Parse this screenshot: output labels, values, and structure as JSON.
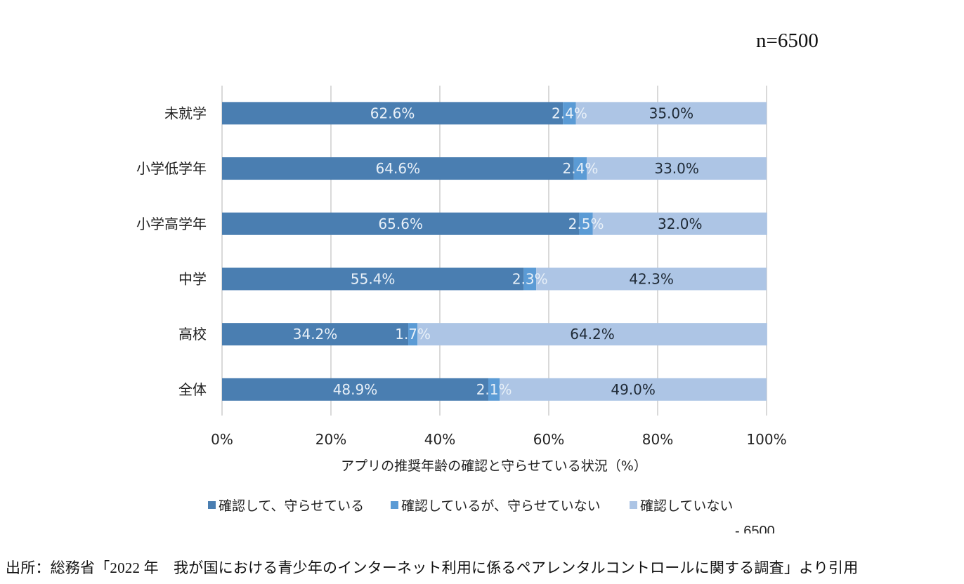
{
  "n_label": "n=6500",
  "source_note": "出所：総務省「2022 年　我が国における青少年のインターネット利用に係るペアレンタルコントロールに関する調査」より引用",
  "artifact_text": "-  6500",
  "chart_data": {
    "type": "bar",
    "orientation": "horizontal",
    "stacked": "percent",
    "title": "",
    "xlabel": "アプリの推奨年齢の確認と守らせている状況（%）",
    "ylabel": "",
    "xlim": [
      0,
      100
    ],
    "x_ticks": [
      "0%",
      "20%",
      "40%",
      "60%",
      "80%",
      "100%"
    ],
    "grid": true,
    "legend_position": "bottom",
    "categories": [
      "未就学",
      "小学低学年",
      "小学高学年",
      "中学",
      "高校",
      "全体"
    ],
    "series": [
      {
        "name": "確認して、守らせている",
        "color": "#4a7eb1",
        "label_color": "#e8f0f8",
        "values": [
          62.6,
          64.6,
          65.6,
          55.4,
          34.2,
          48.9
        ]
      },
      {
        "name": "確認しているが、守らせていない",
        "color": "#5b9bd5",
        "label_color": "#e8f0f8",
        "values": [
          2.4,
          2.4,
          2.5,
          2.3,
          1.7,
          2.1
        ]
      },
      {
        "name": "確認していない",
        "color": "#adc5e5",
        "label_color": "#1f2a36",
        "values": [
          35.0,
          33.0,
          32.0,
          42.3,
          64.2,
          49.0
        ]
      }
    ],
    "data_labels": [
      [
        "62.6%",
        "64.6%",
        "65.6%",
        "55.4%",
        "34.2%",
        "48.9%"
      ],
      [
        "2.4%",
        "2.4%",
        "2.5%",
        "2.3%",
        "1.7%",
        "2.1%"
      ],
      [
        "35.0%",
        "33.0%",
        "32.0%",
        "42.3%",
        "64.2%",
        "49.0%"
      ]
    ]
  }
}
